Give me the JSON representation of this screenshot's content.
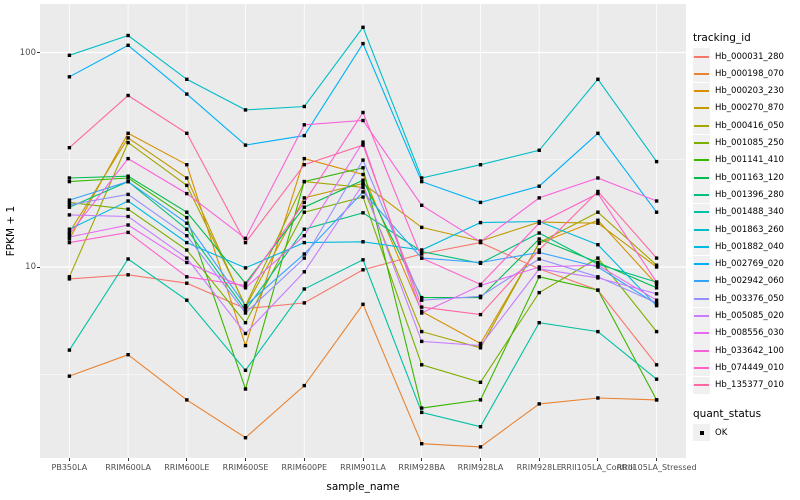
{
  "chart_data": {
    "type": "line",
    "title": "",
    "xlabel": "sample_name",
    "ylabel": "FPKM + 1",
    "y_scale": "log10",
    "ylim": [
      1.3,
      168
    ],
    "yticks": [
      {
        "label": "100",
        "value": 100
      },
      {
        "label": "10",
        "value": 10
      }
    ],
    "minor_gridline_values": [
      3.162,
      31.62
    ],
    "panel_background": "#EBEBEB",
    "gridline_color": "#FFFFFF",
    "grid": "on",
    "legend_position": "right",
    "marker": {
      "shape": "square",
      "color": "#000000"
    },
    "categories": [
      "PB350LA",
      "RRIM600LA",
      "RRIM600LE",
      "RRIM600SE",
      "RRIM600PE",
      "RRIM901LA",
      "RRIM928BA",
      "RRIM928LA",
      "RRIM928LE",
      "RRII105LA_Control",
      "RRII105LA_Stressed"
    ],
    "legend_title": "tracking_id",
    "legend2": {
      "title": "quant_status",
      "items": [
        {
          "label": "OK",
          "marker": "black-square"
        }
      ]
    },
    "series": [
      {
        "name": "Hb_000031_280",
        "color": "#F8766D",
        "values": [
          8.8,
          9.2,
          8.4,
          6.4,
          6.8,
          9.7,
          11.5,
          13.0,
          9.8,
          7.8,
          3.5
        ]
      },
      {
        "name": "Hb_000198_070",
        "color": "#EA8331",
        "values": [
          3.1,
          3.9,
          2.4,
          1.6,
          2.8,
          6.7,
          1.5,
          1.45,
          2.3,
          2.45,
          2.4
        ]
      },
      {
        "name": "Hb_000203_230",
        "color": "#D89000",
        "values": [
          13.5,
          42,
          30,
          4.3,
          32,
          27,
          6.2,
          4.4,
          12.9,
          16.5,
          8.3
        ]
      },
      {
        "name": "Hb_000270_870",
        "color": "#C09B00",
        "values": [
          14.5,
          40,
          26,
          6.5,
          21,
          24.5,
          15.3,
          13.2,
          16.2,
          16.0,
          10.0
        ]
      },
      {
        "name": "Hb_000416_050",
        "color": "#A3A500",
        "values": [
          9.0,
          38,
          24,
          6.6,
          25,
          23.5,
          5.0,
          4.2,
          13.0,
          18.0,
          10.2
        ]
      },
      {
        "name": "Hb_001085_250",
        "color": "#7CAE00",
        "values": [
          20,
          18.6,
          12,
          5.5,
          18,
          21.2,
          3.5,
          2.9,
          7.6,
          11.0,
          5.0
        ]
      },
      {
        "name": "Hb_001141_410",
        "color": "#39B600",
        "values": [
          25,
          26,
          17,
          2.7,
          25,
          29,
          2.2,
          2.4,
          9.0,
          7.8,
          2.4
        ]
      },
      {
        "name": "Hb_001163_120",
        "color": "#00BB4E",
        "values": [
          26,
          26.5,
          18,
          8.4,
          19,
          25.4,
          7.2,
          7.2,
          13.5,
          10.5,
          8.0
        ]
      },
      {
        "name": "Hb_001396_280",
        "color": "#00BF7D",
        "values": [
          19,
          25,
          15,
          6.3,
          15,
          17.9,
          11.8,
          10.4,
          14.4,
          10.3,
          8.5
        ]
      },
      {
        "name": "Hb_001488_340",
        "color": "#00C1A3",
        "values": [
          4.1,
          10.9,
          7.0,
          3.3,
          7.9,
          10.8,
          2.1,
          1.8,
          5.5,
          5.0,
          3.0
        ]
      },
      {
        "name": "Hb_001863_260",
        "color": "#00BFC4",
        "values": [
          97,
          120,
          75,
          54,
          56,
          131,
          26,
          30,
          35,
          75,
          31
        ]
      },
      {
        "name": "Hb_001882_040",
        "color": "#00BAE0",
        "values": [
          15,
          20.3,
          13,
          9.9,
          13,
          13.1,
          12.0,
          16.1,
          16.3,
          12.7,
          6.6
        ]
      },
      {
        "name": "Hb_002769_020",
        "color": "#00B0F6",
        "values": [
          77,
          108,
          64,
          37,
          41,
          110,
          25,
          20,
          23.8,
          42,
          18
        ]
      },
      {
        "name": "Hb_002942_060",
        "color": "#35A2FF",
        "values": [
          20.5,
          25,
          16,
          6.6,
          11.5,
          22.4,
          11.0,
          10.5,
          11.7,
          10.0,
          6.7
        ]
      },
      {
        "name": "Hb_003376_050",
        "color": "#9590FF",
        "values": [
          19.5,
          21.8,
          14,
          6.1,
          11,
          31.5,
          7.0,
          7.3,
          10.9,
          9.0,
          6.8
        ]
      },
      {
        "name": "Hb_005085_020",
        "color": "#C77CFF",
        "values": [
          17.5,
          17.2,
          11,
          4.9,
          9.5,
          24.3,
          4.5,
          4.3,
          9.8,
          8.9,
          7.5
        ]
      },
      {
        "name": "Hb_008556_030",
        "color": "#E76BF3",
        "values": [
          13.8,
          15.7,
          10.5,
          8.0,
          14,
          38.2,
          6.1,
          8.2,
          10.0,
          10.2,
          7.0
        ]
      },
      {
        "name": "Hb_033642_100",
        "color": "#FA62DB",
        "values": [
          14.2,
          32,
          22,
          13.6,
          46,
          48.2,
          19.4,
          13.1,
          21.0,
          26.0,
          20.3
        ]
      },
      {
        "name": "Hb_074449_010",
        "color": "#FF61CC",
        "values": [
          13.0,
          14.5,
          9.0,
          8.2,
          20,
          52.5,
          11.0,
          8.3,
          16.0,
          22.0,
          8.5
        ]
      },
      {
        "name": "Hb_135377_010",
        "color": "#FF67A4",
        "values": [
          36,
          63,
          42,
          13.0,
          30,
          37,
          6.5,
          6.0,
          12.0,
          22.5,
          11.0
        ]
      }
    ]
  }
}
